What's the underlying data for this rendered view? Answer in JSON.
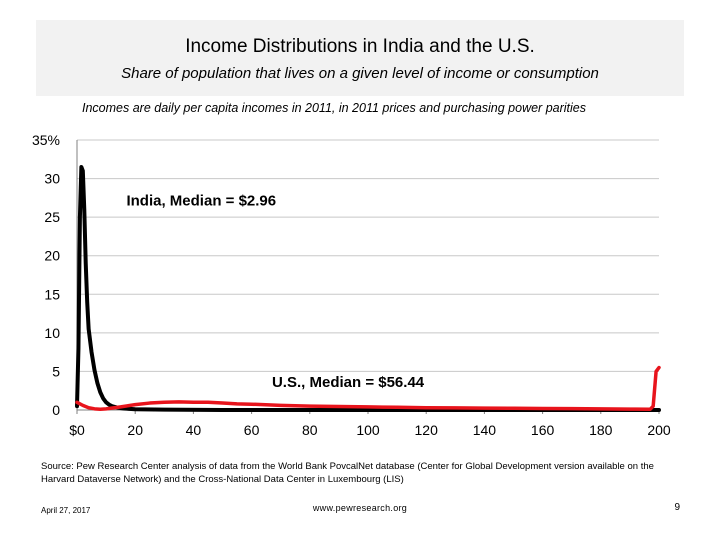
{
  "header": {
    "title": "Income Distributions in India and the U.S.",
    "subtitle": "Share of population that lives on a given level of income or consumption"
  },
  "note": "Incomes are daily per capita incomes in 2011, in 2011 prices and purchasing power parities",
  "chart_data": {
    "type": "line",
    "xlim": [
      0,
      200
    ],
    "ylim": [
      0,
      35
    ],
    "x_ticks": [
      0,
      20,
      40,
      60,
      80,
      100,
      120,
      140,
      160,
      180,
      200
    ],
    "x_tick_labels": [
      "$0",
      "20",
      "40",
      "60",
      "80",
      "100",
      "120",
      "140",
      "160",
      "180",
      "200"
    ],
    "y_ticks": [
      0,
      5,
      10,
      15,
      20,
      25,
      30,
      35
    ],
    "y_tick_labels": [
      "0",
      "5",
      "10",
      "15",
      "20",
      "25",
      "30",
      "35%"
    ],
    "grid": true,
    "series": [
      {
        "name": "India",
        "color": "#000000",
        "points": [
          [
            0,
            0.5
          ],
          [
            0.5,
            8
          ],
          [
            1,
            25
          ],
          [
            1.5,
            31.5
          ],
          [
            2,
            31
          ],
          [
            2.5,
            26
          ],
          [
            3,
            19
          ],
          [
            3.5,
            14
          ],
          [
            4,
            10.5
          ],
          [
            5,
            7.5
          ],
          [
            6,
            5.2
          ],
          [
            7,
            3.5
          ],
          [
            8,
            2.3
          ],
          [
            9,
            1.5
          ],
          [
            10,
            1
          ],
          [
            11,
            0.7
          ],
          [
            12,
            0.5
          ],
          [
            14,
            0.3
          ],
          [
            16,
            0.2
          ],
          [
            20,
            0.1
          ],
          [
            30,
            0.05
          ],
          [
            50,
            0
          ],
          [
            200,
            0
          ]
        ]
      },
      {
        "name": "U.S.",
        "color": "#e8141c",
        "points": [
          [
            0,
            1
          ],
          [
            2,
            0.6
          ],
          [
            4,
            0.3
          ],
          [
            6,
            0.15
          ],
          [
            8,
            0.1
          ],
          [
            10,
            0.15
          ],
          [
            15,
            0.4
          ],
          [
            20,
            0.7
          ],
          [
            25,
            0.9
          ],
          [
            30,
            1
          ],
          [
            35,
            1.05
          ],
          [
            40,
            1
          ],
          [
            45,
            1
          ],
          [
            50,
            0.9
          ],
          [
            55,
            0.8
          ],
          [
            60,
            0.75
          ],
          [
            70,
            0.6
          ],
          [
            80,
            0.5
          ],
          [
            90,
            0.45
          ],
          [
            100,
            0.4
          ],
          [
            110,
            0.35
          ],
          [
            120,
            0.3
          ],
          [
            130,
            0.28
          ],
          [
            140,
            0.25
          ],
          [
            150,
            0.22
          ],
          [
            160,
            0.2
          ],
          [
            170,
            0.18
          ],
          [
            180,
            0.15
          ],
          [
            190,
            0.12
          ],
          [
            197,
            0.1
          ],
          [
            198,
            0.5
          ],
          [
            199,
            5
          ],
          [
            200,
            5.5
          ]
        ]
      }
    ],
    "annotations": [
      {
        "text": "India,  Median = $2.96",
        "x": 17,
        "y": 26.5
      },
      {
        "text": "U.S.,  Median = $56.44",
        "x": 67,
        "y": 3
      }
    ]
  },
  "source": "Source: Pew Research Center analysis of data from the World Bank PovcalNet database (Center for Global Development version available on the Harvard Dataverse Network) and the Cross-National Data Center in Luxembourg (LIS)",
  "footer": {
    "date": "April 27, 2017",
    "url": "www.pewresearch.org",
    "page": "9"
  }
}
